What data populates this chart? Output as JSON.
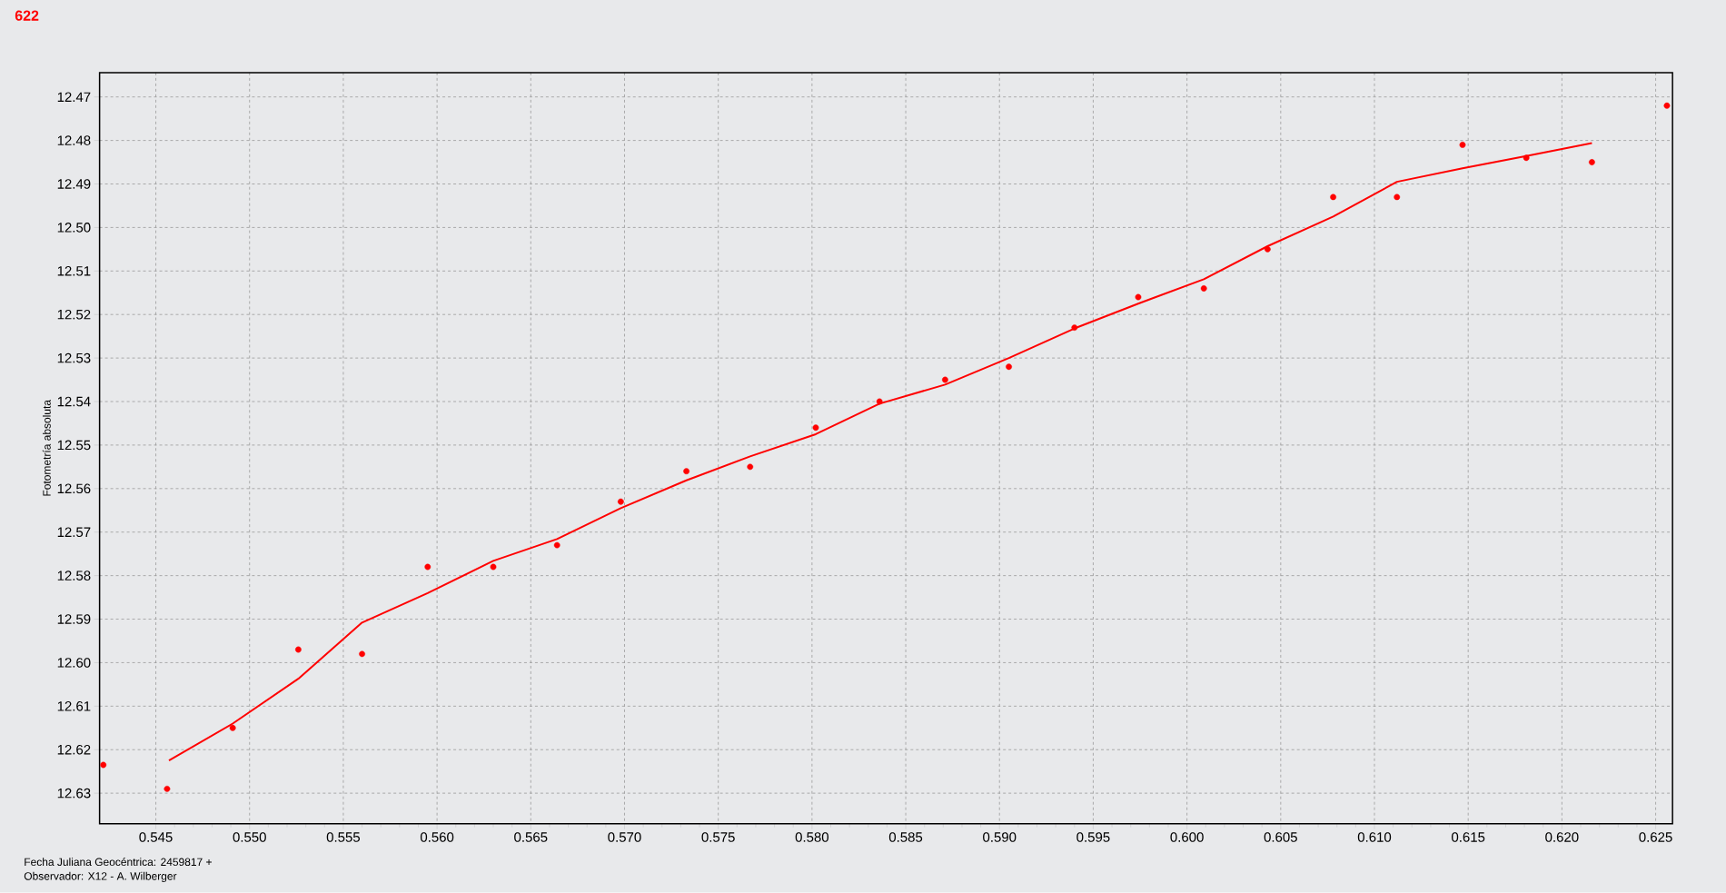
{
  "chart_data": {
    "type": "scatter",
    "title": "622",
    "ylabel": "Fotometría absoluta",
    "xlabel": "Fecha Juliana Geocéntrica: 2459817 +",
    "annotations": [
      "Observador: X12 - A. Wilberger"
    ],
    "series": [
      {
        "type": "scatter",
        "color": "#ff0000",
        "marker": "circle",
        "x": [
          0.5422,
          0.5456,
          0.5491,
          0.5526,
          0.556,
          0.5595,
          0.563,
          0.5664,
          0.5698,
          0.5733,
          0.5767,
          0.5802,
          0.5836,
          0.5871,
          0.5905,
          0.594,
          0.5974,
          0.6009,
          0.6043,
          0.6078,
          0.6112,
          0.6147,
          0.6181,
          0.6216,
          0.6256
        ],
        "values": [
          12.6235,
          12.629,
          12.615,
          12.597,
          12.598,
          12.578,
          12.578,
          12.573,
          12.563,
          12.556,
          12.555,
          12.546,
          12.54,
          12.535,
          12.532,
          12.523,
          12.516,
          12.514,
          12.505,
          12.493,
          12.493,
          12.481,
          12.484,
          12.485,
          12.472
        ]
      },
      {
        "type": "line",
        "color": "#ff0000",
        "marker": "none",
        "line_style": "solid",
        "x": [
          0.5457,
          0.5491,
          0.5526,
          0.556,
          0.5595,
          0.563,
          0.5664,
          0.5698,
          0.5733,
          0.5767,
          0.5802,
          0.5836,
          0.5871,
          0.5905,
          0.594,
          0.5974,
          0.6009,
          0.6043,
          0.6078,
          0.6112,
          0.6147,
          0.6181,
          0.6216
        ],
        "values": [
          12.6225,
          12.614,
          12.6037,
          12.5908,
          12.584,
          12.5766,
          12.5716,
          12.5645,
          12.5581,
          12.5526,
          12.5475,
          12.5405,
          12.5361,
          12.53,
          12.5232,
          12.5175,
          12.5119,
          12.5043,
          12.4975,
          12.4895,
          12.4864,
          12.4836,
          12.4806
        ]
      }
    ],
    "xlim": [
      0.542,
      0.6259
    ],
    "ylim": [
      12.637,
      12.4644
    ],
    "xticks": [
      0.545,
      {
        "value": 0.55,
        "label": "0.550"
      },
      0.555,
      {
        "value": 0.56,
        "label": "0.560"
      },
      0.565,
      {
        "value": 0.57,
        "label": "0.570"
      },
      0.575,
      {
        "value": 0.58,
        "label": "0.580"
      },
      0.585,
      {
        "value": 0.59,
        "label": "0.590"
      },
      0.595,
      {
        "value": 0.6,
        "label": "0.600"
      },
      0.605,
      {
        "value": 0.61,
        "label": "0.610"
      },
      0.615,
      {
        "value": 0.62,
        "label": "0.620"
      },
      0.625
    ],
    "yticks": [
      12.47,
      12.48,
      12.49,
      {
        "value": 12.5,
        "label": "12.50"
      },
      12.51,
      12.52,
      12.53,
      12.54,
      12.55,
      12.56,
      12.57,
      12.58,
      12.59,
      {
        "value": 12.6,
        "label": "12.60"
      },
      12.61,
      12.62,
      12.63
    ],
    "grid": true
  }
}
